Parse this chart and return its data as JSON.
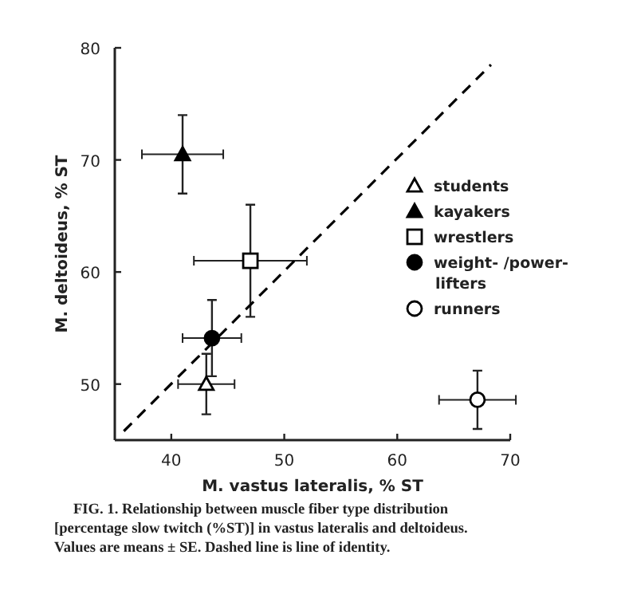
{
  "chart_data": {
    "type": "scatter",
    "xlabel": "M. vastus lateralis,  % ST",
    "ylabel": "M. deltoideus,  % ST",
    "xlim": [
      35,
      70
    ],
    "ylim": [
      45,
      80
    ],
    "xticks": [
      40,
      50,
      60,
      70
    ],
    "yticks": [
      50,
      60,
      70,
      80
    ],
    "grid": false,
    "legend": "right",
    "annotations": [
      "FIG. 1. Relationship between muscle fiber type distribution [percentage slow twitch (%ST)] in vastus lateralis and deltoideus. Values are means ± SE. Dashed line is line of identity."
    ],
    "series": [
      {
        "name": "students",
        "color": "#ffffff",
        "marker": "triangle",
        "x": [
          43.1
        ],
        "values": [
          50
        ],
        "errors": [
          2.7
        ],
        "xerrors": [
          2.5
        ]
      },
      {
        "name": "kayakers",
        "color": "#000000",
        "marker": "triangle",
        "x": [
          41
        ],
        "values": [
          70.5
        ],
        "errors": [
          3.5
        ],
        "xerrors": [
          3.6
        ]
      },
      {
        "name": "wrestlers",
        "color": "#ffffff",
        "marker": "square",
        "x": [
          47
        ],
        "values": [
          61
        ],
        "errors": [
          5
        ],
        "xerrors": [
          5
        ]
      },
      {
        "name": "weight- /power-lifters",
        "color": "#000000",
        "marker": "circle",
        "x": [
          43.6
        ],
        "values": [
          54.1
        ],
        "errors": [
          3.4
        ],
        "xerrors": [
          2.6
        ]
      },
      {
        "name": "runners",
        "color": "#ffffff",
        "marker": "circle",
        "x": [
          67.1
        ],
        "values": [
          48.6
        ],
        "errors": [
          2.6
        ],
        "xerrors": [
          3.4
        ]
      },
      {
        "type": "line",
        "color": "#000000",
        "line_style": "dashed",
        "x": [
          35.8,
          68.3
        ],
        "values": [
          45.8,
          78.5
        ]
      }
    ]
  }
}
